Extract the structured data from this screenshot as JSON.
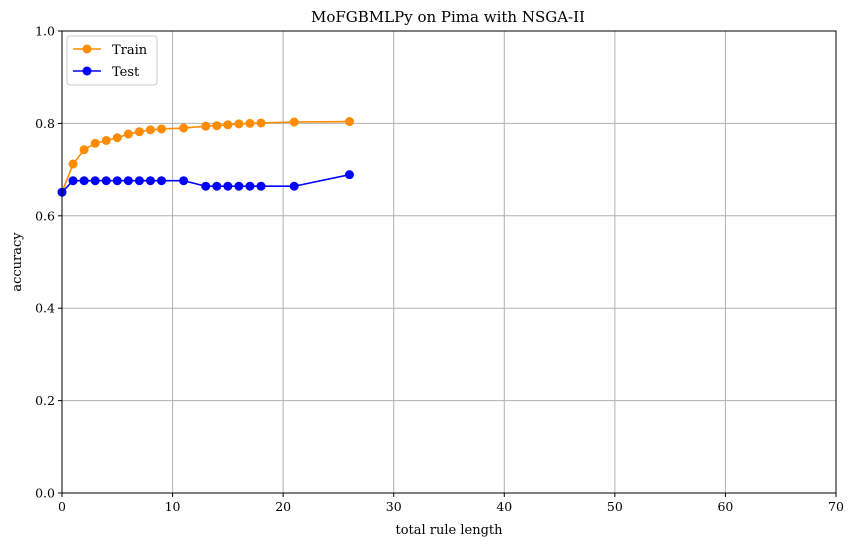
{
  "chart_data": {
    "type": "line",
    "title": "MoFGBMLPy on Pima with NSGA-II",
    "xlabel": "total rule length",
    "ylabel": "accuracy",
    "xlim": [
      0,
      70
    ],
    "ylim": [
      0.0,
      1.0
    ],
    "xticks": [
      0,
      10,
      20,
      30,
      40,
      50,
      60,
      70
    ],
    "yticks": [
      0.0,
      0.2,
      0.4,
      0.6,
      0.8,
      1.0
    ],
    "xtick_labels": [
      "0",
      "10",
      "20",
      "30",
      "40",
      "50",
      "60",
      "70"
    ],
    "ytick_labels": [
      "0.0",
      "0.2",
      "0.4",
      "0.6",
      "0.8",
      "1.0"
    ],
    "grid": true,
    "legend_position": "top-left",
    "series": [
      {
        "name": "Train",
        "color": "#ff8c00",
        "marker": "circle",
        "x": [
          0,
          1,
          2,
          3,
          4,
          5,
          6,
          7,
          8,
          9,
          11,
          13,
          14,
          15,
          16,
          17,
          18,
          21,
          26
        ],
        "y": [
          0.651,
          0.712,
          0.743,
          0.757,
          0.763,
          0.769,
          0.777,
          0.782,
          0.786,
          0.788,
          0.79,
          0.794,
          0.795,
          0.797,
          0.799,
          0.8,
          0.801,
          0.803,
          0.804
        ]
      },
      {
        "name": "Test",
        "color": "#0000ff",
        "marker": "circle",
        "x": [
          0,
          1,
          2,
          3,
          4,
          5,
          6,
          7,
          8,
          9,
          11,
          13,
          14,
          15,
          16,
          17,
          18,
          21,
          26
        ],
        "y": [
          0.651,
          0.676,
          0.676,
          0.676,
          0.676,
          0.676,
          0.676,
          0.676,
          0.676,
          0.676,
          0.676,
          0.664,
          0.664,
          0.664,
          0.664,
          0.664,
          0.664,
          0.664,
          0.689
        ]
      }
    ]
  }
}
